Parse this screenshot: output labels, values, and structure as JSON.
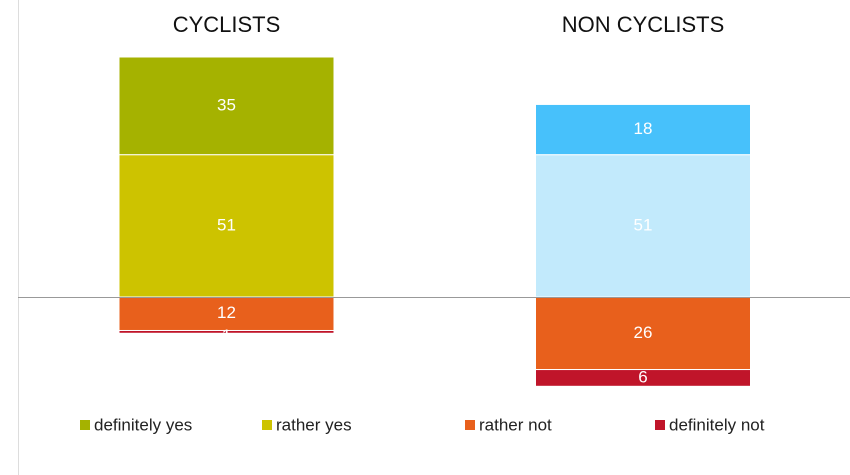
{
  "chart_data": {
    "type": "diverging_bar",
    "categories": [
      "CYCLISTS",
      "NON CYCLISTS"
    ],
    "series": [
      {
        "name": "definitely yes",
        "color": "#a5b200",
        "colors": [
          "#a5b200",
          "#47c1fb"
        ],
        "direction": "positive",
        "values": [
          35,
          18
        ]
      },
      {
        "name": "rather yes",
        "color": "#cdc300",
        "colors": [
          "#cdc300",
          "#c2eafc"
        ],
        "direction": "positive",
        "values": [
          51,
          51
        ]
      },
      {
        "name": "rather not",
        "color": "#e8601c",
        "colors": [
          "#e8601c",
          "#e8601c"
        ],
        "direction": "negative",
        "values": [
          12,
          26
        ]
      },
      {
        "name": "definitely not",
        "color": "#c0152a",
        "colors": [
          "#c0152a",
          "#c0152a"
        ],
        "direction": "negative",
        "values": [
          1,
          6
        ]
      }
    ],
    "legend": "bottom"
  }
}
